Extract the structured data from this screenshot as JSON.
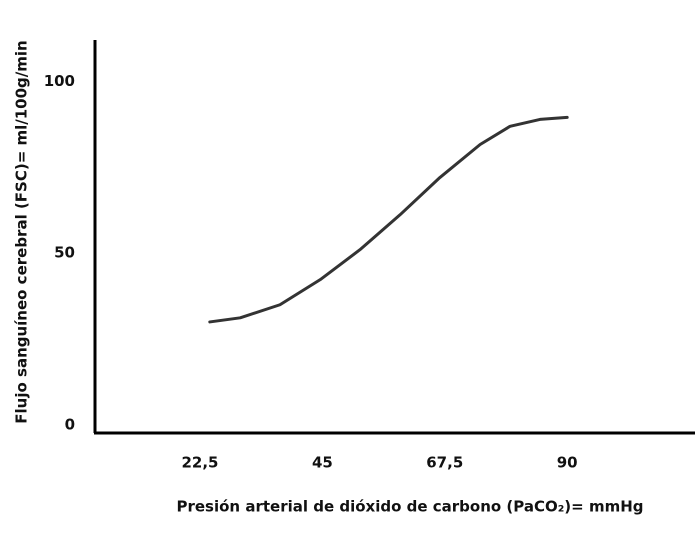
{
  "chart_data": {
    "type": "line",
    "xlabel": "Presión arterial de dióxido de carbono (PaCO₂)= mmHg",
    "ylabel": "Flujo sanguíneo cerebral (FSC)=  ml/100g/min",
    "x": [
      24.3,
      29.9,
      37.2,
      44.6,
      51.9,
      59.3,
      66.6,
      74.0,
      79.5,
      85.0,
      90.0
    ],
    "series": [
      {
        "color": "#333333",
        "values": [
          30.0,
          31.2,
          35.0,
          42.3,
          51.0,
          61.2,
          72.0,
          81.6,
          86.9,
          88.9,
          89.5
        ]
      }
    ],
    "xlim": [
      3.2,
      113.5
    ],
    "ylim": [
      -2.3,
      112
    ],
    "xticks": [
      {
        "value": 22.5,
        "label": "22,5"
      },
      45,
      {
        "value": 67.5,
        "label": "67,5"
      },
      90
    ],
    "yticks": [
      0,
      50,
      100
    ]
  }
}
